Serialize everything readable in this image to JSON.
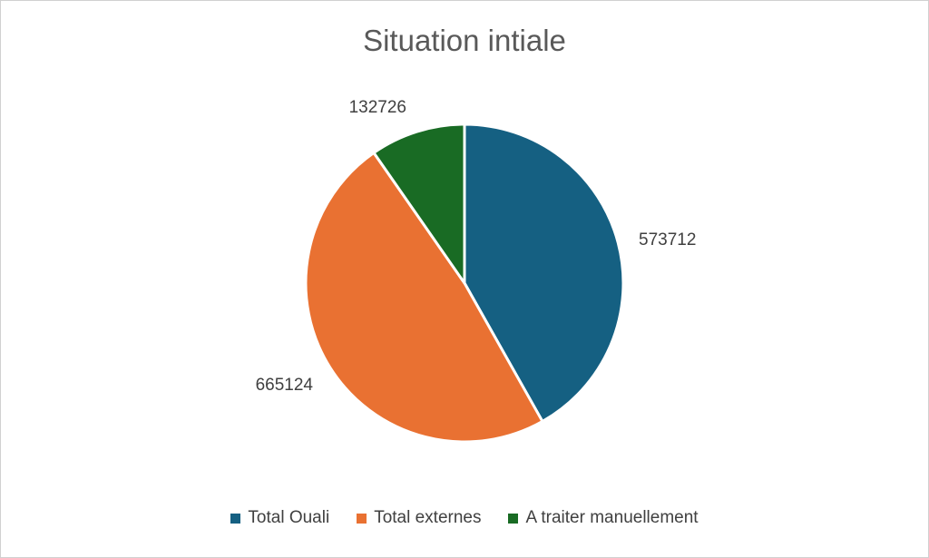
{
  "chart_data": {
    "type": "pie",
    "title": "Situation intiale",
    "categories": [
      "Total Ouali",
      "Total externes",
      "A traiter manuellement"
    ],
    "values": [
      573712,
      665124,
      132726
    ],
    "colors": [
      "#156082",
      "#E97132",
      "#196B24"
    ],
    "data_labels": [
      "573712",
      "665124",
      "132726"
    ],
    "legend_position": "bottom",
    "start_angle_deg": 0,
    "direction": "clockwise"
  }
}
